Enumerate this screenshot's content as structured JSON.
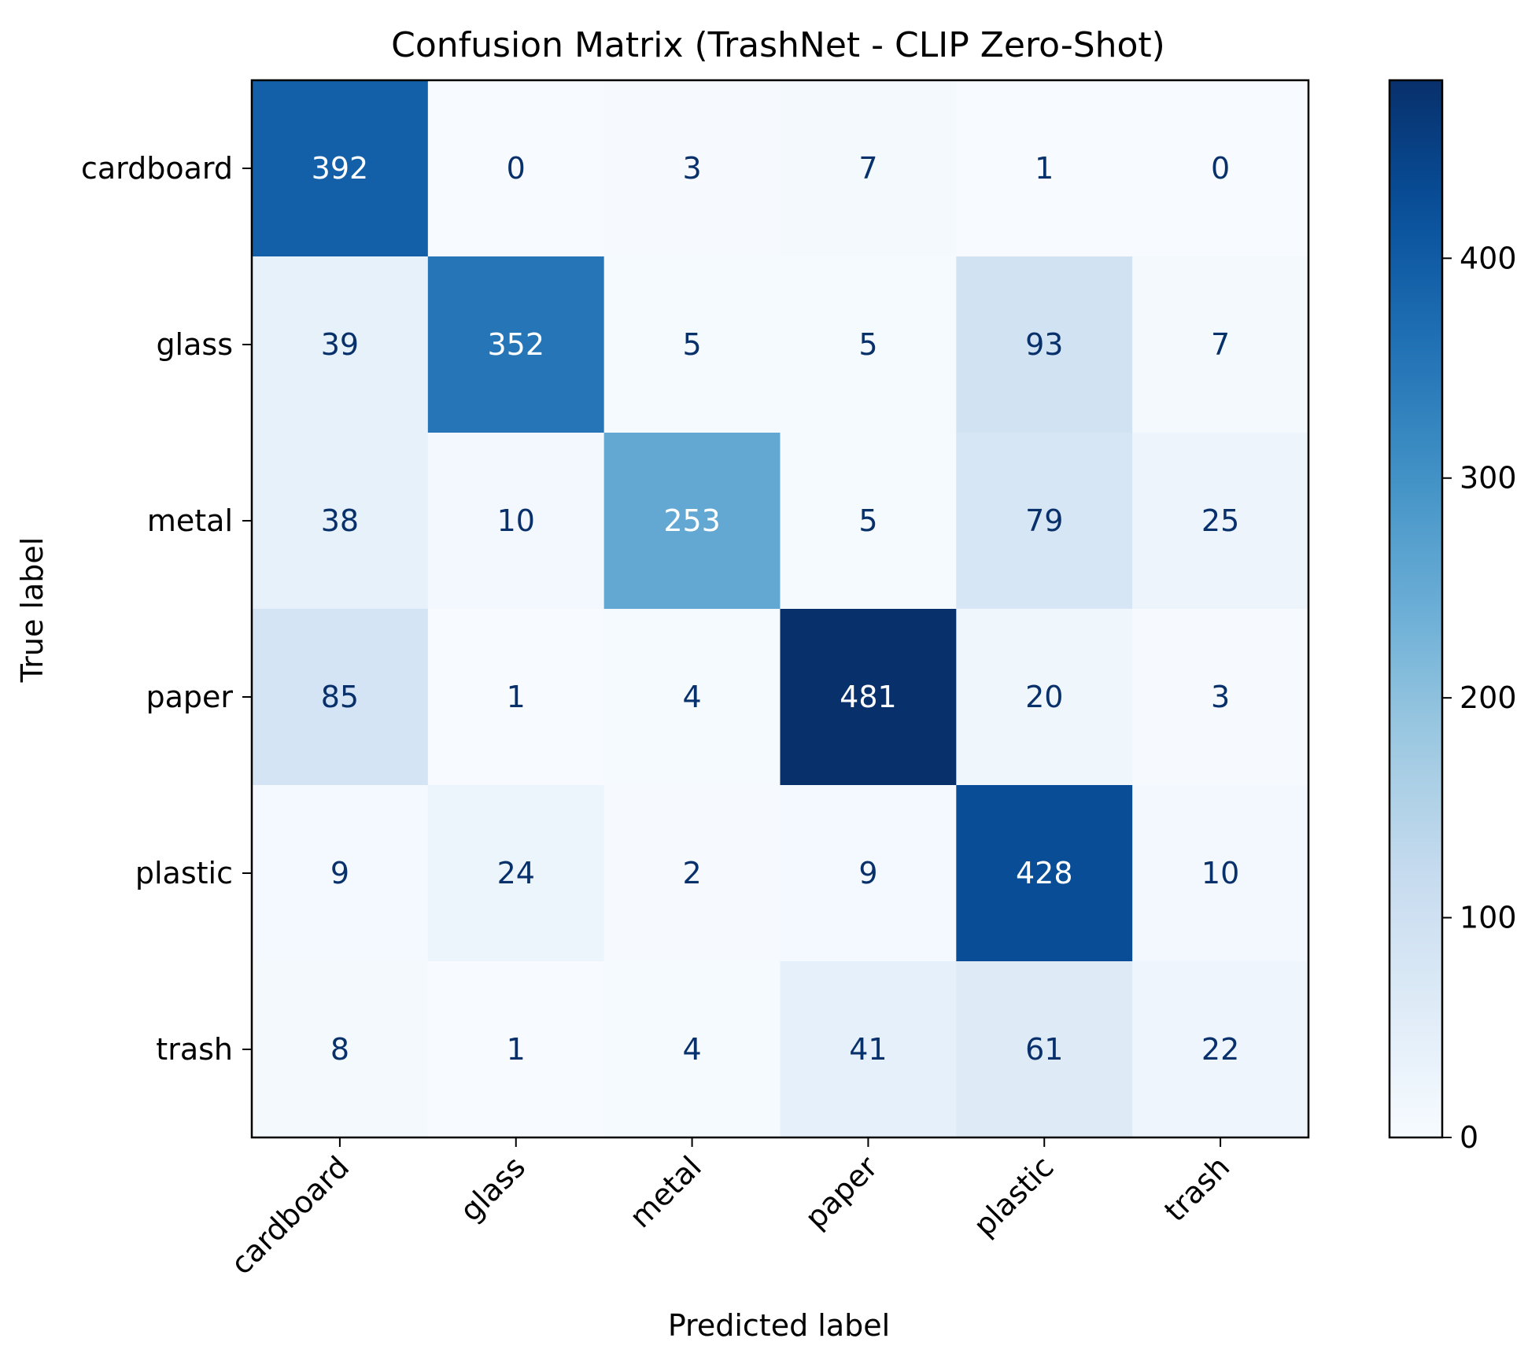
{
  "chart_data": {
    "type": "heatmap",
    "title": "Confusion Matrix (TrashNet - CLIP Zero-Shot)",
    "xlabel": "Predicted label",
    "ylabel": "True label",
    "x_categories": [
      "cardboard",
      "glass",
      "metal",
      "paper",
      "plastic",
      "trash"
    ],
    "y_categories": [
      "cardboard",
      "glass",
      "metal",
      "paper",
      "plastic",
      "trash"
    ],
    "matrix": [
      [
        392,
        0,
        3,
        7,
        1,
        0
      ],
      [
        39,
        352,
        5,
        5,
        93,
        7
      ],
      [
        38,
        10,
        253,
        5,
        79,
        25
      ],
      [
        85,
        1,
        4,
        481,
        20,
        3
      ],
      [
        9,
        24,
        2,
        9,
        428,
        10
      ],
      [
        8,
        1,
        4,
        41,
        61,
        22
      ]
    ],
    "colormap": "Blues",
    "colorbar": {
      "range": [
        0,
        481
      ],
      "ticks": [
        0,
        100,
        200,
        300,
        400
      ],
      "tick_labels": [
        "0",
        "100",
        "200",
        "300",
        "400"
      ]
    }
  }
}
